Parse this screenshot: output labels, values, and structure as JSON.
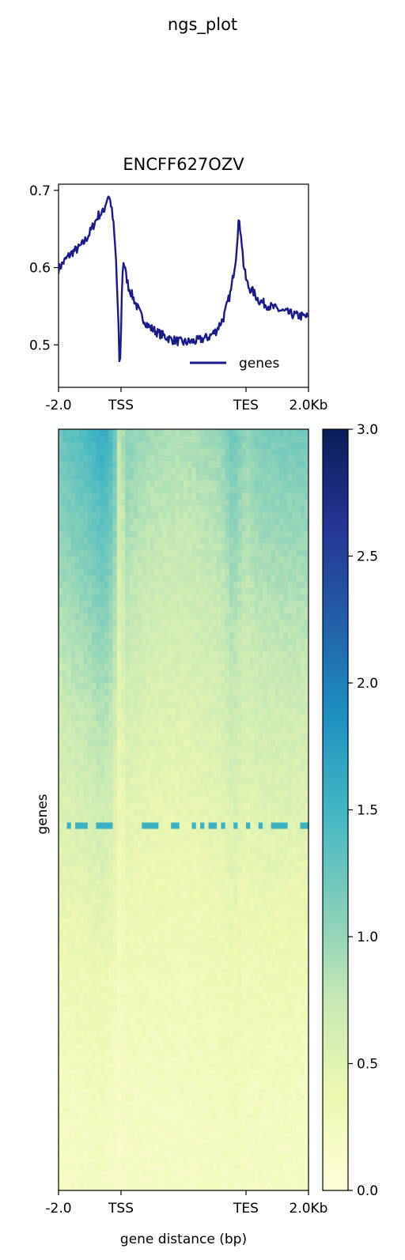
{
  "figure": {
    "suptitle": "ngs_plot"
  },
  "chart_data": [
    {
      "type": "line",
      "title": "ENCFF627OZV",
      "xlabel": "",
      "ylabel": "",
      "ylim": [
        0.445,
        0.708
      ],
      "yticks": [
        "0.5",
        "0.6",
        "0.7"
      ],
      "ytick_values": [
        0.5,
        0.6,
        0.7
      ],
      "xticks": [
        "-2.0",
        "TSS",
        "TES",
        "2.0Kb"
      ],
      "legend_position": "lower-right",
      "colors": {
        "line": "#1a1a8c"
      },
      "series": [
        {
          "name": "genes",
          "x": [
            0,
            0.02,
            0.04,
            0.06,
            0.08,
            0.1,
            0.12,
            0.14,
            0.16,
            0.18,
            0.19,
            0.2,
            0.21,
            0.22,
            0.23,
            0.24,
            0.245,
            0.25,
            0.255,
            0.26,
            0.265,
            0.27,
            0.28,
            0.3,
            0.33,
            0.36,
            0.4,
            0.45,
            0.5,
            0.55,
            0.6,
            0.63,
            0.66,
            0.69,
            0.71,
            0.72,
            0.73,
            0.735,
            0.74,
            0.75,
            0.76,
            0.78,
            0.8,
            0.83,
            0.86,
            0.9,
            0.95,
            1
          ],
          "values": [
            0.598,
            0.607,
            0.615,
            0.621,
            0.625,
            0.632,
            0.642,
            0.655,
            0.668,
            0.672,
            0.685,
            0.694,
            0.682,
            0.655,
            0.61,
            0.52,
            0.46,
            0.52,
            0.59,
            0.608,
            0.6,
            0.59,
            0.575,
            0.56,
            0.538,
            0.524,
            0.515,
            0.507,
            0.503,
            0.505,
            0.51,
            0.518,
            0.535,
            0.57,
            0.615,
            0.66,
            0.645,
            0.625,
            0.605,
            0.585,
            0.575,
            0.568,
            0.558,
            0.552,
            0.548,
            0.543,
            0.538,
            0.536
          ]
        }
      ]
    },
    {
      "type": "heatmap",
      "title": "",
      "xlabel": "gene distance (bp)",
      "ylabel": "genes",
      "xticks": [
        "-2.0",
        "TSS",
        "TES",
        "2.0Kb"
      ],
      "colorbar": {
        "range": [
          0.0,
          3.0
        ],
        "ticks": [
          "0.0",
          "0.5",
          "1.0",
          "1.5",
          "2.0",
          "2.5",
          "3.0"
        ],
        "tick_values": [
          0,
          0.5,
          1.0,
          1.5,
          2.0,
          2.5,
          3.0
        ],
        "colormap": "YlGnBu",
        "colors": [
          "#ffffd9",
          "#edf8b1",
          "#c7e9b4",
          "#7fcdbb",
          "#41b6c4",
          "#1d91c0",
          "#225ea8",
          "#253494",
          "#081d58"
        ]
      },
      "profile": {
        "x": [
          0,
          0.1,
          0.18,
          0.22,
          0.245,
          0.27,
          0.35,
          0.5,
          0.65,
          0.7,
          0.75,
          0.8,
          1
        ],
        "top_values": [
          1.25,
          1.4,
          1.6,
          1.4,
          0.7,
          1.1,
          0.95,
          0.88,
          1.0,
          1.25,
          1.0,
          1.15,
          1.2
        ],
        "bottom_values": [
          0.2,
          0.2,
          0.22,
          0.2,
          0.15,
          0.2,
          0.2,
          0.2,
          0.22,
          0.25,
          0.22,
          0.22,
          0.2
        ]
      },
      "highlight_row": {
        "fraction": 0.52,
        "value": 1.55
      }
    }
  ]
}
